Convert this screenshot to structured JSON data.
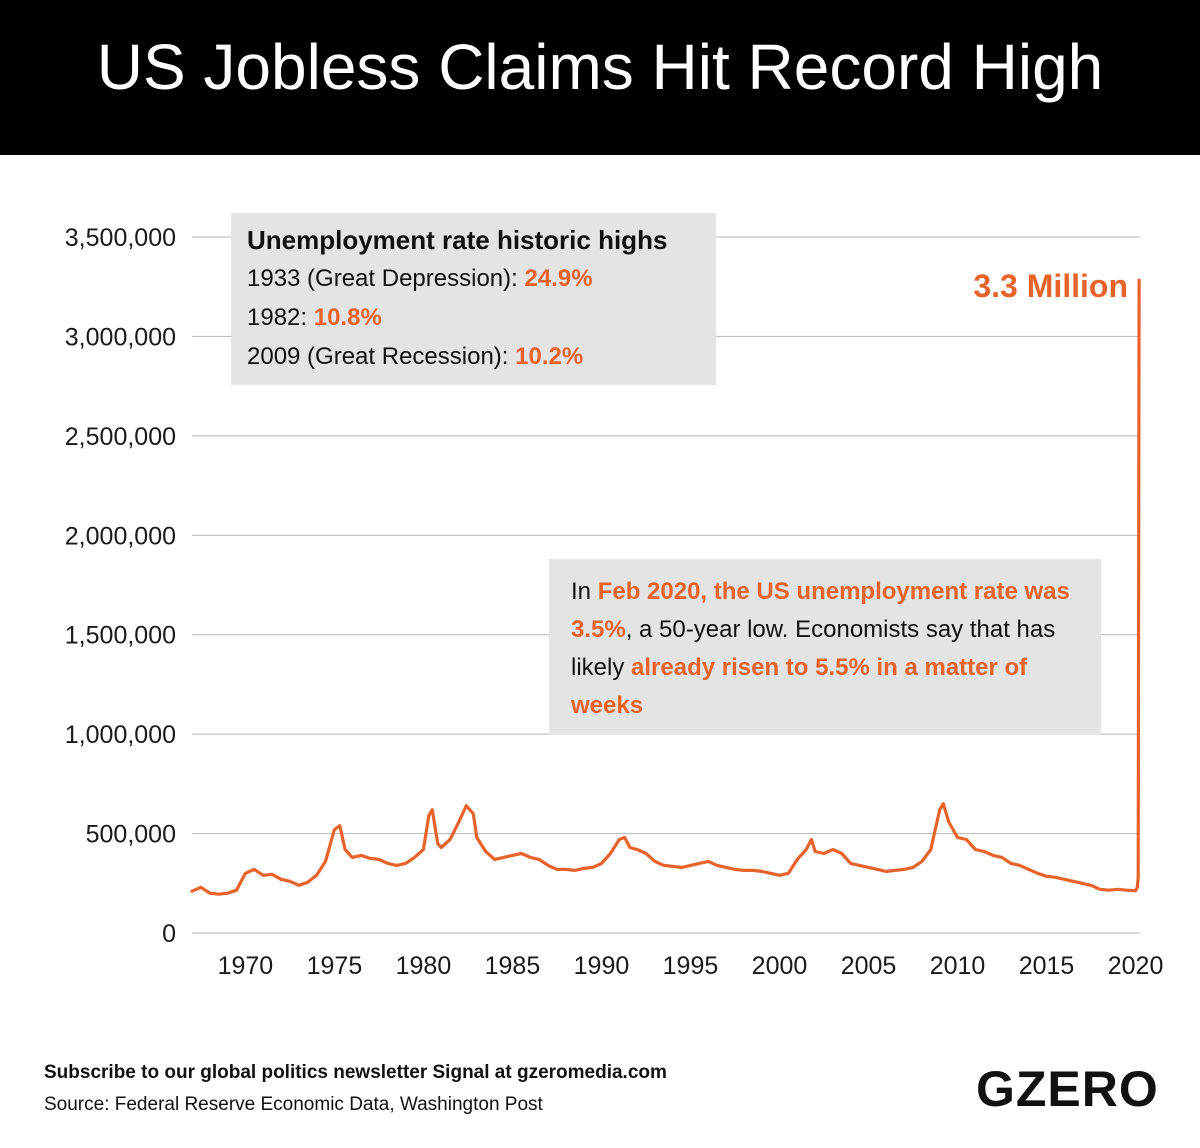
{
  "header": {
    "title": "US Jobless Claims Hit Record High"
  },
  "box_highs": {
    "heading": "Unemployment rate historic highs",
    "rows": [
      {
        "year": "1933",
        "note": " (Great Depression)",
        "sep": ": ",
        "value": "24.9%"
      },
      {
        "year": "1982",
        "note": "",
        "sep": ": ",
        "value": "10.8%"
      },
      {
        "year": "2009",
        "note": " (Great Recession)",
        "sep": ": ",
        "value": "10.2%"
      }
    ]
  },
  "box_feb": {
    "t1": "In ",
    "h1": "Feb 2020, the US unemployment rate was 3.5%",
    "t2": ", a 50-year low. Economists say that has likely ",
    "h2": "already risen to 5.5% in a matter of weeks"
  },
  "peak_label": "3.3 Million",
  "footer": {
    "subscribe": "Subscribe to our global politics newsletter Signal at gzeromedia.com",
    "source": "Source: Federal Reserve Economic Data, Washington Post",
    "logo": "GZERO"
  },
  "colors": {
    "series": "#e8632a",
    "grid": "#b5b5b5",
    "box": "#e4e4e4",
    "title_bg": "#000000"
  },
  "chart_data": {
    "type": "line",
    "title": "US Jobless Claims Hit Record High",
    "xlabel": "",
    "ylabel": "",
    "xlim": [
      1967,
      2020.25
    ],
    "ylim": [
      0,
      3500000
    ],
    "grid": true,
    "legend": "none",
    "x_ticks": [
      1970,
      1975,
      1980,
      1985,
      1990,
      1995,
      2000,
      2005,
      2010,
      2015,
      2020
    ],
    "x_tick_labels": [
      "1970",
      "1975",
      "1980",
      "1985",
      "1990",
      "1995",
      "2000",
      "2005",
      "2010",
      "2015",
      "2020"
    ],
    "y_ticks": [
      0,
      500000,
      1000000,
      1500000,
      2000000,
      2500000,
      3000000,
      3500000
    ],
    "y_tick_labels": [
      "0",
      "500,000",
      "1,000,000",
      "1,500,000",
      "2,000,000",
      "2,500,000",
      "3,000,000",
      "3,500,000"
    ],
    "series": [
      {
        "x": [
          1967.0,
          1967.5,
          1968.0,
          1968.5,
          1969.0,
          1969.5,
          1970.0,
          1970.5,
          1971.0,
          1971.5,
          1972.0,
          1972.5,
          1973.0,
          1973.5,
          1974.0,
          1974.5,
          1975.0,
          1975.3,
          1975.6,
          1976.0,
          1976.5,
          1977.0,
          1977.5,
          1978.0,
          1978.5,
          1979.0,
          1979.5,
          1980.0,
          1980.3,
          1980.5,
          1980.8,
          1981.0,
          1981.5,
          1982.0,
          1982.4,
          1982.8,
          1983.0,
          1983.5,
          1984.0,
          1984.5,
          1985.0,
          1985.5,
          1986.0,
          1986.5,
          1987.0,
          1987.5,
          1988.0,
          1988.5,
          1989.0,
          1989.5,
          1990.0,
          1990.5,
          1991.0,
          1991.3,
          1991.6,
          1992.0,
          1992.5,
          1993.0,
          1993.5,
          1994.0,
          1994.5,
          1995.0,
          1995.5,
          1996.0,
          1996.5,
          1997.0,
          1997.5,
          1998.0,
          1998.5,
          1999.0,
          1999.5,
          2000.0,
          2000.5,
          2001.0,
          2001.5,
          2001.8,
          2002.0,
          2002.5,
          2003.0,
          2003.5,
          2004.0,
          2004.5,
          2005.0,
          2005.5,
          2006.0,
          2006.5,
          2007.0,
          2007.5,
          2008.0,
          2008.5,
          2009.0,
          2009.2,
          2009.5,
          2010.0,
          2010.5,
          2011.0,
          2011.5,
          2012.0,
          2012.5,
          2013.0,
          2013.5,
          2014.0,
          2014.5,
          2015.0,
          2015.5,
          2016.0,
          2016.5,
          2017.0,
          2017.5,
          2018.0,
          2018.5,
          2019.0,
          2019.5,
          2020.0,
          2020.1,
          2020.15,
          2020.2
        ],
        "values": [
          210000,
          230000,
          200000,
          195000,
          200000,
          215000,
          300000,
          320000,
          290000,
          295000,
          270000,
          260000,
          240000,
          255000,
          290000,
          360000,
          520000,
          540000,
          420000,
          380000,
          390000,
          375000,
          370000,
          350000,
          340000,
          350000,
          380000,
          420000,
          590000,
          620000,
          450000,
          430000,
          470000,
          560000,
          640000,
          600000,
          480000,
          410000,
          370000,
          380000,
          390000,
          400000,
          380000,
          370000,
          340000,
          320000,
          320000,
          315000,
          325000,
          330000,
          350000,
          400000,
          470000,
          480000,
          430000,
          420000,
          400000,
          360000,
          340000,
          335000,
          330000,
          340000,
          350000,
          360000,
          340000,
          330000,
          320000,
          315000,
          315000,
          310000,
          300000,
          290000,
          300000,
          370000,
          420000,
          470000,
          410000,
          400000,
          420000,
          400000,
          350000,
          340000,
          330000,
          320000,
          310000,
          315000,
          320000,
          330000,
          360000,
          420000,
          620000,
          650000,
          560000,
          480000,
          470000,
          420000,
          410000,
          390000,
          380000,
          350000,
          340000,
          320000,
          300000,
          285000,
          280000,
          270000,
          260000,
          250000,
          240000,
          220000,
          215000,
          220000,
          215000,
          212000,
          230000,
          280000,
          3283000
        ]
      }
    ]
  }
}
